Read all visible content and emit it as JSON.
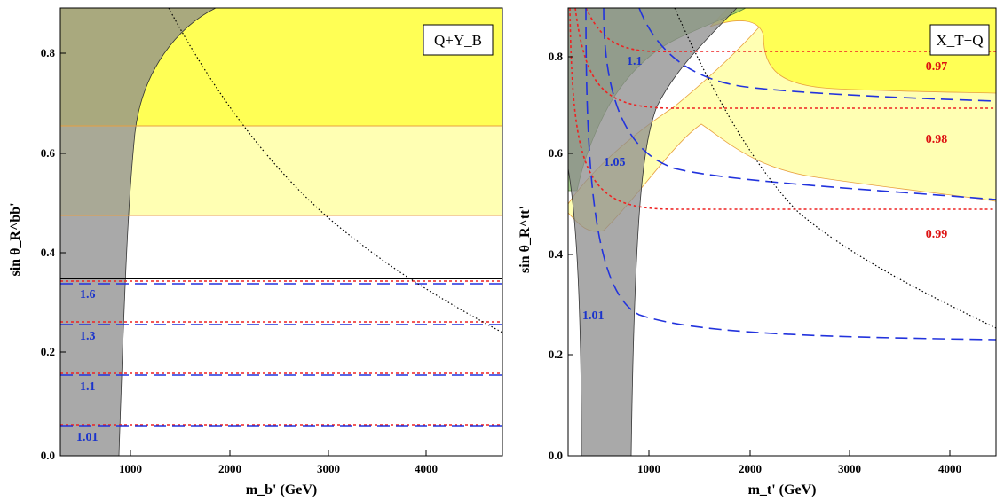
{
  "chart_data": [
    {
      "type": "line",
      "xlabel": "m_b' (GeV)",
      "ylabel": "sin θ_R^bb'",
      "xlim": [
        200,
        4600
      ],
      "ylim": [
        0,
        0.9
      ],
      "xticks": [
        "1000",
        "2000",
        "3000",
        "4000"
      ],
      "yticks": [
        "0.0",
        "0.2",
        "0.4",
        "0.6",
        "0.8"
      ],
      "legend": "Q+Y_B",
      "regions": [
        {
          "fill": "bright-yellow",
          "y_min": 0.66,
          "y_max": 0.9
        },
        {
          "fill": "light-yellow",
          "y_min": 0.475,
          "y_max": 0.66
        },
        {
          "fill": "gray",
          "description": "excluded band at low mass"
        }
      ],
      "reference_lines": [
        {
          "style": "solid-black",
          "y": 0.348
        }
      ],
      "curve_labels": [
        {
          "text": "1.6",
          "y": 0.336
        },
        {
          "text": "1.3",
          "y": 0.255
        },
        {
          "text": "1.1",
          "y": 0.154
        },
        {
          "text": "1.01",
          "y": 0.05
        }
      ],
      "curves": [
        {
          "style": "dashed-blue",
          "values_y": [
            0.336,
            0.255,
            0.154,
            0.05
          ]
        },
        {
          "style": "dotted-red",
          "values_y": [
            0.343,
            0.262,
            0.158,
            0.052
          ]
        },
        {
          "style": "dotted-black",
          "x": [
            1350,
            2000,
            2500,
            3000,
            3500,
            4000,
            4600
          ],
          "y": [
            0.9,
            0.62,
            0.48,
            0.38,
            0.32,
            0.28,
            0.24
          ]
        }
      ]
    },
    {
      "type": "line",
      "xlabel": "m_t' (GeV)",
      "ylabel": "sin θ_R^tt'",
      "xlim": [
        200,
        4500
      ],
      "ylim": [
        0,
        0.9
      ],
      "xticks": [
        "1000",
        "2000",
        "3000",
        "4000"
      ],
      "yticks": [
        "0.0",
        "0.2",
        "0.4",
        "0.6",
        "0.8"
      ],
      "legend": "X_T+Q",
      "regions": [
        {
          "fill": "bright-yellow",
          "description": "upper right"
        },
        {
          "fill": "light-yellow",
          "description": "middle band"
        },
        {
          "fill": "green",
          "description": "upper left"
        },
        {
          "fill": "gray",
          "description": "excluded band at low mass"
        }
      ],
      "red_contours": [
        {
          "label": "0.97",
          "y_asymptote": 0.805
        },
        {
          "label": "0.98",
          "y_asymptote": 0.645
        },
        {
          "label": "0.99",
          "y_asymptote": 0.468
        }
      ],
      "blue_contours": [
        {
          "label": "1.1",
          "y_asymptote": 0.705
        },
        {
          "label": "1.05",
          "y_asymptote": 0.5
        },
        {
          "label": "1.01",
          "y_asymptote": 0.222
        }
      ],
      "curves": [
        {
          "style": "dotted-black",
          "x": [
            1100,
            1600,
            2000,
            2500,
            3000,
            3500,
            4000,
            4500
          ],
          "y": [
            0.9,
            0.66,
            0.56,
            0.46,
            0.39,
            0.33,
            0.28,
            0.245
          ]
        }
      ]
    }
  ]
}
